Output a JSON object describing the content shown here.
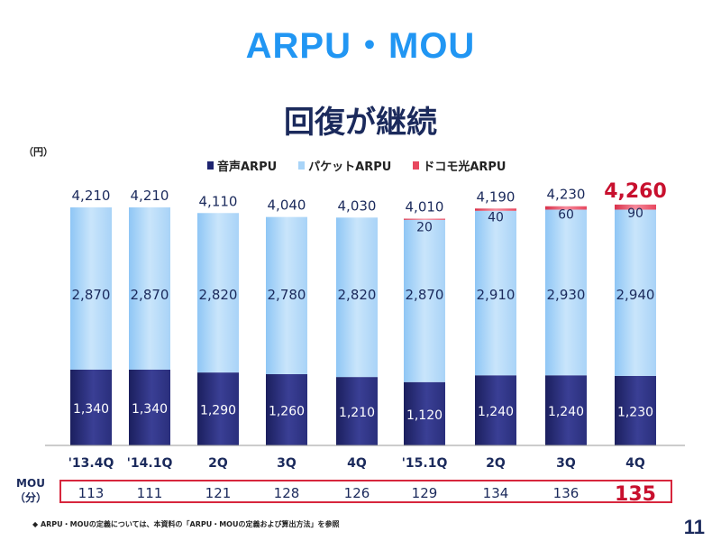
{
  "title": "ARPU・MOU",
  "subtitle": "回復が継続",
  "unit": "（円）",
  "footnote": "◆ ARPU・MOUの定義については、本資料の「ARPU・MOUの定義および算出方法」を参照",
  "page_number": "11",
  "mou_label_line1": "MOU",
  "mou_label_line2": "（分）",
  "colors": {
    "voice": "#1e2470",
    "packet": "#a8d4f8",
    "hikari": "#e8485f",
    "highlight": "#c8102e",
    "title": "#2196f3"
  },
  "chart_data": {
    "type": "bar",
    "stacked": true,
    "categories": [
      "'13.4Q",
      "'14.1Q",
      "2Q",
      "3Q",
      "4Q",
      "'15.1Q",
      "2Q",
      "3Q",
      "4Q"
    ],
    "series": [
      {
        "name": "音声ARPU",
        "values": [
          1340,
          1340,
          1290,
          1260,
          1210,
          1120,
          1240,
          1240,
          1230
        ],
        "labels": [
          "1,340",
          "1,340",
          "1,290",
          "1,260",
          "1,210",
          "1,120",
          "1,240",
          "1,240",
          "1,230"
        ]
      },
      {
        "name": "パケットARPU",
        "values": [
          2870,
          2870,
          2820,
          2780,
          2820,
          2870,
          2910,
          2930,
          2940
        ],
        "labels": [
          "2,870",
          "2,870",
          "2,820",
          "2,780",
          "2,820",
          "2,870",
          "2,910",
          "2,930",
          "2,940"
        ]
      },
      {
        "name": "ドコモ光ARPU",
        "values": [
          0,
          0,
          0,
          0,
          0,
          20,
          40,
          60,
          90
        ],
        "labels": [
          "",
          "",
          "",
          "",
          "",
          "20",
          "40",
          "60",
          "90"
        ]
      }
    ],
    "totals": [
      4210,
      4210,
      4110,
      4040,
      4030,
      4010,
      4190,
      4230,
      4260
    ],
    "total_labels": [
      "4,210",
      "4,210",
      "4,110",
      "4,040",
      "4,030",
      "4,010",
      "4,190",
      "4,230",
      "4,260"
    ],
    "highlight_index": 8,
    "mou": [
      "113",
      "111",
      "121",
      "128",
      "126",
      "129",
      "134",
      "136",
      "135"
    ],
    "ylim": [
      0,
      4600
    ],
    "legend_position": "top",
    "grid": false
  }
}
